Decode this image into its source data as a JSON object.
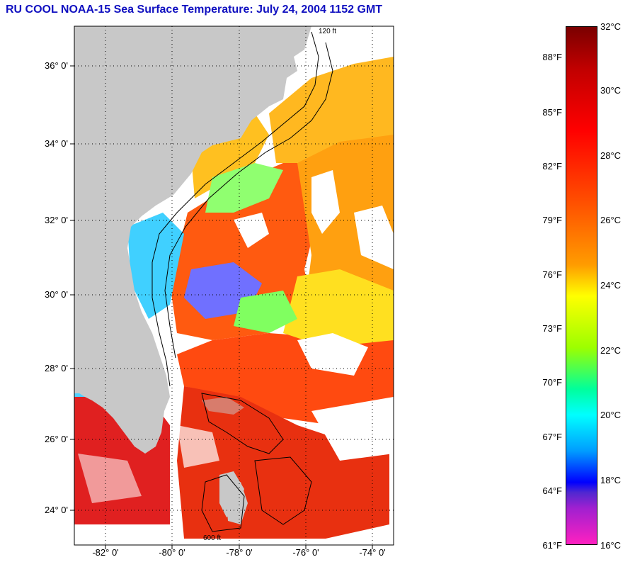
{
  "title": "RU COOL  NOAA-15  Sea Surface Temperature:  July 24, 2004 1152 GMT",
  "lat_labels": [
    "36° 0'",
    "34° 0'",
    "32° 0'",
    "30° 0'",
    "28° 0'",
    "26° 0'",
    "24° 0'"
  ],
  "lon_labels": [
    "-82° 0'",
    "-80° 0'",
    "-78° 0'",
    "-76° 0'",
    "-74° 0'"
  ],
  "isobath_labels": [
    "120 ft",
    "600 ft"
  ],
  "colorbar": {
    "celsius": [
      "32°C",
      "30°C",
      "28°C",
      "26°C",
      "24°C",
      "22°C",
      "20°C",
      "18°C",
      "16°C"
    ],
    "fahrenheit": [
      "88°F",
      "85°F",
      "82°F",
      "79°F",
      "76°F",
      "73°F",
      "70°F",
      "67°F",
      "64°F",
      "61°F"
    ],
    "min_c": 16,
    "max_c": 32
  },
  "colors": {
    "land": "#c8c8c8",
    "title": "#1010c0",
    "cloud": "#ffffff",
    "warm": "#ff4010",
    "hot": "#e01010",
    "moderate": "#ffa000",
    "cool": "#ffff20"
  }
}
